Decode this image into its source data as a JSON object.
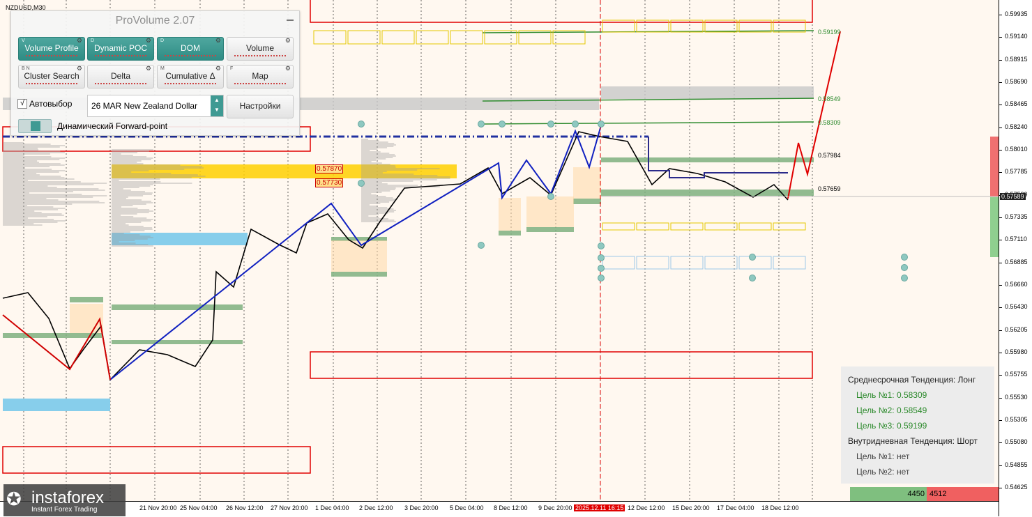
{
  "symbol": "NZDUSD,M30",
  "panel": {
    "title": "ProVolume 2.07",
    "buttons": [
      {
        "key": "V",
        "label": "Volume Profile",
        "active": true
      },
      {
        "key": "D",
        "label": "Dynamic POC",
        "active": true
      },
      {
        "key": "D",
        "label": "DOM",
        "active": true
      },
      {
        "key": "",
        "label": "Volume",
        "active": false
      },
      {
        "key": "B N",
        "label": "Cluster Search",
        "active": false
      },
      {
        "key": "",
        "label": "Delta",
        "active": false
      },
      {
        "key": "M",
        "label": "Cumulative Δ",
        "active": false
      },
      {
        "key": "F",
        "label": "Map",
        "active": false
      }
    ],
    "auto_select_label": "Автовыбор",
    "auto_select_checked": "√",
    "instrument_value": "26 MAR New Zealand Dollar",
    "settings_label": "Настройки",
    "forward_point_label": "Динамический Forward-point"
  },
  "price_axis": [
    "0.59935",
    "0.59140",
    "0.58915",
    "0.58690",
    "0.58465",
    "0.58240",
    "0.58010",
    "0.57785",
    "0.57589",
    "0.57335",
    "0.57110",
    "0.56885",
    "0.56660",
    "0.56430",
    "0.56205",
    "0.55980",
    "0.55755",
    "0.55530",
    "0.55305",
    "0.55080",
    "0.54855",
    "0.54625"
  ],
  "current_price": "0.57589",
  "time_axis": [
    "21 Nov 20:00",
    "25 Nov 04:00",
    "26 Nov 12:00",
    "27 Nov 20:00",
    "1 Dec 04:00",
    "2 Dec 12:00",
    "3 Dec 20:00",
    "5 Dec 04:00",
    "8 Dec 12:00",
    "9 Dec 20:00",
    "2025.12.11 16:15",
    "12 Dec 12:00",
    "15 Dec 20:00",
    "17 Dec 04:00",
    "18 Dec 12:00"
  ],
  "level_labels": {
    "t3": "0.59199",
    "t2": "0.58549",
    "t1": "0.58309",
    "r1": "0.57984",
    "s1": "0.57659",
    "box_hi": "0.57870",
    "box_lo": "0.57730"
  },
  "info": {
    "medium_term": "Среднесрочная Тенденция: Лонг",
    "targets_long": [
      "Цель №1: 0.58309",
      "Цель №2: 0.58549",
      "Цель №3: 0.59199"
    ],
    "intraday": "Внутридневная Тенденция: Шорт",
    "targets_short": [
      "Цель №1: нет",
      "Цель №2: нет"
    ]
  },
  "dom": {
    "buy": "4450",
    "sell": "4512"
  },
  "logo": {
    "mark": "✪",
    "name": "instaforex",
    "tagline": "Instant Forex Trading"
  },
  "colors": {
    "target": "#2e8b2e",
    "trend_blue": "#1020c0",
    "trend_red": "#d00000",
    "poc": "#ffd000"
  }
}
